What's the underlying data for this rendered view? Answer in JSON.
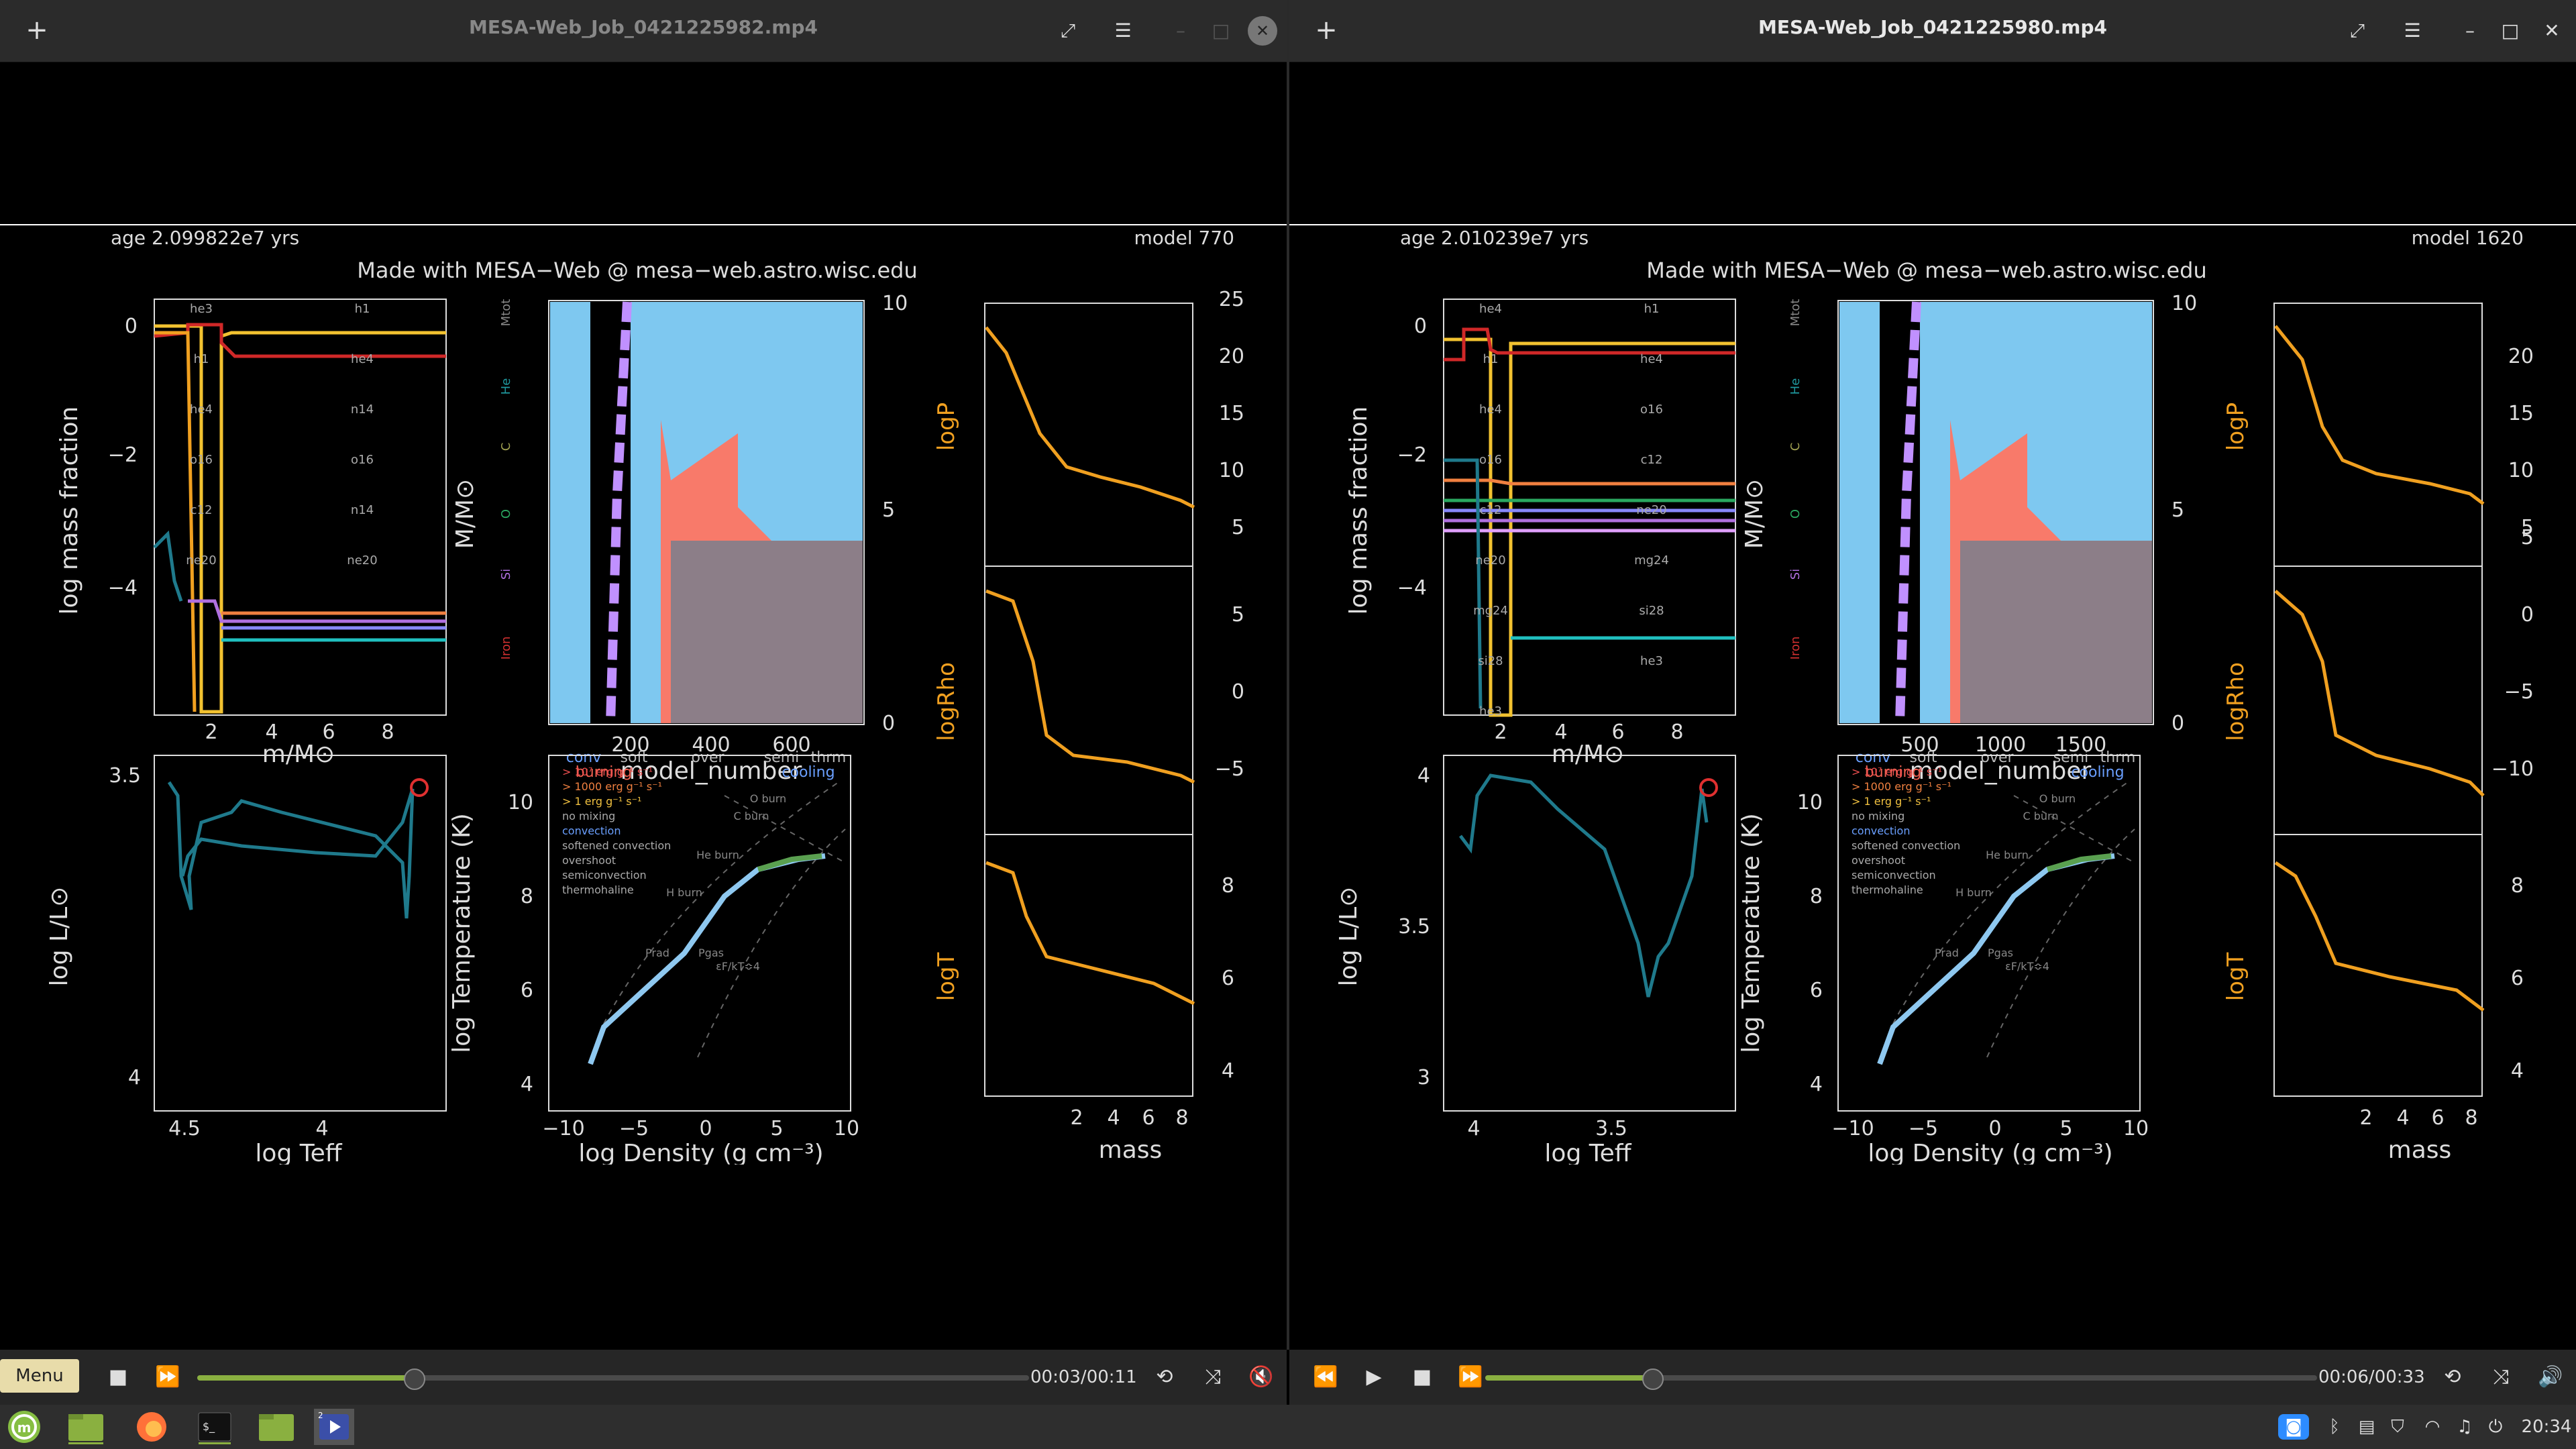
{
  "windows": [
    {
      "title": "MESA-Web_Job_0421225982.mp4",
      "plot": {
        "age": "age 2.099822e7 yrs",
        "model": "model 770",
        "credit": "Made with MESA−Web @ mesa−web.astro.wisc.edu",
        "abund": {
          "ylabel": "log mass fraction",
          "xlabel": "m/M⊙",
          "yticks": [
            "0",
            "−2",
            "−4"
          ],
          "xticks": [
            "2",
            "4",
            "6",
            "8"
          ],
          "labels": [
            "he3",
            "h1",
            "h1",
            "he4",
            "he4",
            "n14",
            "o16",
            "o16",
            "c12",
            "n14",
            "ne20",
            "ne20"
          ]
        },
        "kipp": {
          "xlabel": "model_number",
          "ylabel": "M/M⊙",
          "xticks": [
            "200",
            "400",
            "600"
          ],
          "yticks": [
            "0",
            "5",
            "10"
          ],
          "side": [
            "Mtot",
            "He",
            "C",
            "O",
            "Si",
            "Iron"
          ],
          "legend": [
            "conv",
            "soft",
            "over",
            "semi",
            "thrm",
            "burning",
            "cooling"
          ]
        },
        "hr": {
          "xlabel": "log Teff",
          "ylabel": "log L/L⊙",
          "xticks": [
            "4.5",
            "4"
          ],
          "yticks": [
            "4",
            "3.5"
          ]
        },
        "trho": {
          "xlabel": "log Density (g cm⁻³)",
          "ylabel": "log Temperature (K)",
          "xticks": [
            "−10",
            "−5",
            "0",
            "5",
            "10"
          ],
          "yticks": [
            "4",
            "6",
            "8",
            "10"
          ],
          "legend": [
            "> 10⁷ erg g⁻¹ s⁻¹",
            "> 1000 erg g⁻¹ s⁻¹",
            "> 1 erg g⁻¹ s⁻¹",
            "no mixing",
            "convection",
            "softened convection",
            "overshoot",
            "semiconvection",
            "thermohaline"
          ],
          "zones": [
            "O burn",
            "C burn",
            "He burn",
            "H burn",
            "Prad",
            "Pgas",
            "εF/kT≎4"
          ]
        },
        "prof": {
          "xlabel": "mass",
          "xticks": [
            "2",
            "4",
            "6",
            "8"
          ],
          "logP": {
            "label": "logP",
            "yticks": [
              "5",
              "10",
              "15",
              "20",
              "25"
            ]
          },
          "logRho": {
            "label": "logRho",
            "yticks": [
              "−5",
              "0",
              "5"
            ]
          },
          "logT": {
            "label": "logT",
            "yticks": [
              "4",
              "6",
              "8"
            ]
          }
        }
      },
      "player": {
        "time": "00:03/00:11",
        "progress": 0.26
      }
    },
    {
      "title": "MESA-Web_Job_0421225980.mp4",
      "plot": {
        "age": "age 2.010239e7 yrs",
        "model": "model 1620",
        "credit": "Made with MESA−Web @ mesa−web.astro.wisc.edu",
        "abund": {
          "ylabel": "log mass fraction",
          "xlabel": "m/M⊙",
          "yticks": [
            "0",
            "−2",
            "−4"
          ],
          "xticks": [
            "2",
            "4",
            "6",
            "8"
          ],
          "labels": [
            "he4",
            "h1",
            "h1",
            "he4",
            "he4",
            "o16",
            "o16",
            "c12",
            "c12",
            "ne20",
            "ne20",
            "mg24",
            "mg24",
            "si28",
            "si28",
            "he3",
            "he3"
          ]
        },
        "kipp": {
          "xlabel": "model_number",
          "ylabel": "M/M⊙",
          "xticks": [
            "500",
            "1000",
            "1500"
          ],
          "yticks": [
            "0",
            "5",
            "10"
          ],
          "side": [
            "Mtot",
            "He",
            "C",
            "O",
            "Si",
            "Iron"
          ],
          "legend": [
            "conv",
            "soft",
            "over",
            "semi",
            "thrm",
            "burning",
            "cooling"
          ]
        },
        "hr": {
          "xlabel": "log Teff",
          "ylabel": "log L/L⊙",
          "xticks": [
            "4",
            "3.5"
          ],
          "yticks": [
            "3",
            "3.5",
            "4"
          ]
        },
        "trho": {
          "xlabel": "log Density (g cm⁻³)",
          "ylabel": "log Temperature (K)",
          "xticks": [
            "−10",
            "−5",
            "0",
            "5",
            "10"
          ],
          "yticks": [
            "4",
            "6",
            "8",
            "10"
          ],
          "legend": [
            "> 10⁷ erg g⁻¹ s⁻¹",
            "> 1000 erg g⁻¹ s⁻¹",
            "> 1 erg g⁻¹ s⁻¹",
            "no mixing",
            "convection",
            "softened convection",
            "overshoot",
            "semiconvection",
            "thermohaline"
          ],
          "zones": [
            "O burn",
            "C burn",
            "He burn",
            "H burn",
            "Prad",
            "Pgas",
            "εF/kT≎4"
          ]
        },
        "prof": {
          "xlabel": "mass",
          "xticks": [
            "2",
            "4",
            "6",
            "8"
          ],
          "logP": {
            "label": "logP",
            "yticks": [
              "5",
              "10",
              "15",
              "20"
            ]
          },
          "logRho": {
            "label": "logRho",
            "yticks": [
              "−10",
              "−5",
              "0",
              "5"
            ]
          },
          "logT": {
            "label": "logT",
            "yticks": [
              "4",
              "6",
              "8"
            ]
          }
        }
      },
      "player": {
        "time": "00:06/00:33",
        "progress": 0.2
      }
    }
  ],
  "menu_label": "Menu",
  "clock": "20:34",
  "colors": {
    "accent": "#8ab040",
    "panel": "#2e2e2e",
    "profile": "#f0a020",
    "track": "#1f7a8c"
  },
  "icons": [
    "mint-menu-icon",
    "files-icon",
    "firefox-icon",
    "terminal-icon",
    "folder-icon",
    "video-player-icon",
    "zoom-icon",
    "bluetooth-icon",
    "clipboard-icon",
    "shield-icon",
    "wifi-icon",
    "music-icon",
    "power-icon"
  ]
}
